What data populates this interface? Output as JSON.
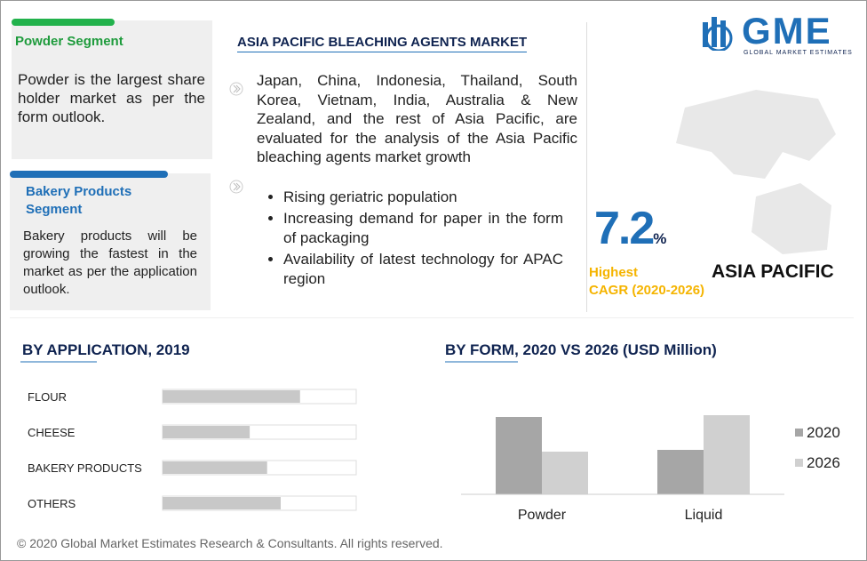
{
  "logo": {
    "name": "GME",
    "tagline": "GLOBAL MARKET ESTIMATES"
  },
  "powder_segment": {
    "title": "Powder Segment",
    "text": "Powder is the largest share holder market as per the form outlook."
  },
  "bakery_segment": {
    "title": "Bakery Products Segment",
    "text": "Bakery products will be growing the fastest in the market as per the application outlook."
  },
  "main": {
    "title": "ASIA PACIFIC BLEACHING AGENTS MARKET",
    "summary": "Japan, China, Indonesia, Thailand, South Korea, Vietnam, India, Australia & New Zealand, and the rest of Asia Pacific, are evaluated for the analysis of the Asia Pacific bleaching agents market growth",
    "bullets": [
      "Rising geriatric population",
      "Increasing demand for paper in the form of packaging",
      "Availability of latest technology for APAC region"
    ]
  },
  "cagr": {
    "value": 7.2,
    "unit": "%",
    "label_1": "Highest",
    "label_2": "CAGR (2020-2026)"
  },
  "region": "ASIA PACIFIC",
  "footer": "© 2020 Global Market Estimates Research & Consultants. All rights reserved.",
  "chart_data": [
    {
      "type": "hbar",
      "title": "BY  APPLICATION, 2019",
      "categories": [
        "FLOUR",
        "CHEESE",
        "BAKERY PRODUCTS",
        "OTHERS"
      ],
      "values": [
        71,
        45,
        54,
        61
      ],
      "xlim": [
        0,
        100
      ],
      "color": "#c8c8c8"
    },
    {
      "type": "bar",
      "title": "BY FORM, 2020 VS 2026 (USD Million)",
      "categories": [
        "Powder",
        "Liquid"
      ],
      "ylim": [
        0,
        100
      ],
      "legend": "right",
      "series": [
        {
          "name": "2020",
          "color": "#a6a6a6",
          "values": [
            87,
            50
          ]
        },
        {
          "name": "2026",
          "color": "#d0d0d0",
          "values": [
            48,
            89
          ]
        }
      ]
    }
  ]
}
